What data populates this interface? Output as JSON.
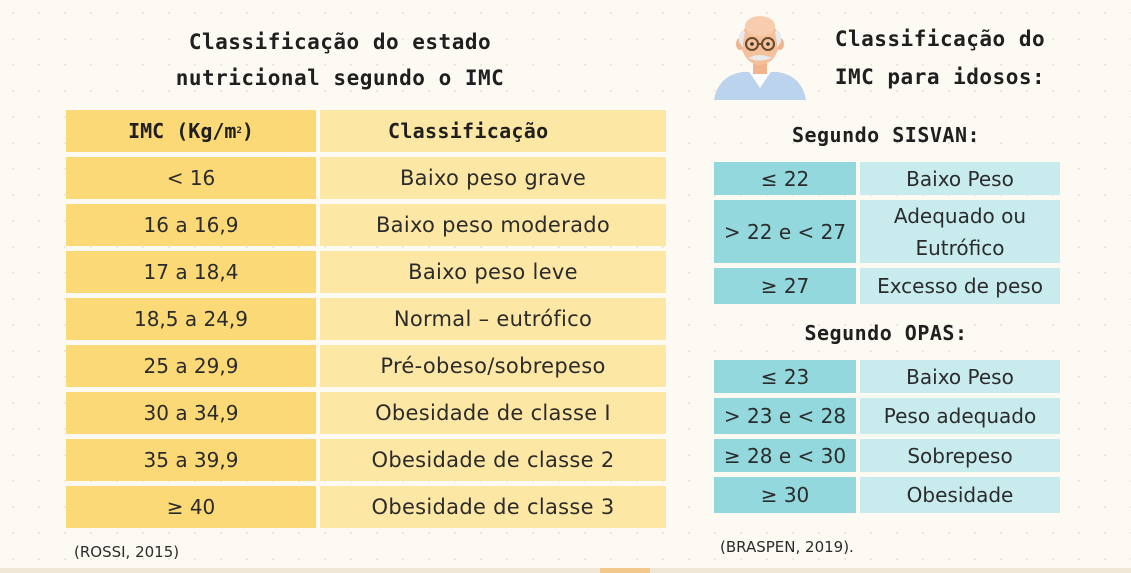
{
  "left": {
    "title_line1": "Classificação do estado",
    "title_line2": "nutricional segundo o IMC",
    "table": {
      "header_imc": "IMC (Kg/m",
      "header_imc_sup": "2",
      "header_imc_close": ")",
      "header_class": "Classificação",
      "rows": [
        {
          "imc": "< 16",
          "classificacao": "Baixo peso grave"
        },
        {
          "imc": "16 a 16,9",
          "classificacao": "Baixo peso moderado"
        },
        {
          "imc": "17 a 18,4",
          "classificacao": "Baixo peso leve"
        },
        {
          "imc": "18,5 a 24,9",
          "classificacao": "Normal – eutrófico"
        },
        {
          "imc": "25 a 29,9",
          "classificacao": "Pré-obeso/sobrepeso"
        },
        {
          "imc": "30 a 34,9",
          "classificacao": "Obesidade de classe I"
        },
        {
          "imc": "35 a 39,9",
          "classificacao": "Obesidade de classe 2"
        },
        {
          "imc": "≥ 40",
          "classificacao": "Obesidade de classe 3"
        }
      ]
    },
    "citation": "(ROSSI, 2015)"
  },
  "right": {
    "title_line1": "Classificação do",
    "title_line2": "IMC para idosos:",
    "sisvan": {
      "title": "Segundo SISVAN:",
      "rows": [
        {
          "imc": "≤ 22",
          "classificacao": "Baixo Peso"
        },
        {
          "imc": "> 22 e < 27",
          "classificacao_line1": "Adequado ou",
          "classificacao_line2": "Eutrófico"
        },
        {
          "imc": "≥ 27",
          "classificacao": "Excesso de peso"
        }
      ]
    },
    "opas": {
      "title": "Segundo OPAS:",
      "rows": [
        {
          "imc": "≤ 23",
          "classificacao": "Baixo Peso"
        },
        {
          "imc": "> 23 e < 28",
          "classificacao": "Peso adequado"
        },
        {
          "imc": "≥ 28 e < 30",
          "classificacao": "Sobrepeso"
        },
        {
          "imc": "≥ 30",
          "classificacao": "Obesidade"
        }
      ]
    },
    "citation": "(BRASPEN, 2019)."
  },
  "icons": {
    "avatar": "elderly-man-icon"
  },
  "colors": {
    "left_key": "#fbd977",
    "left_value": "#fde7a5",
    "right_key": "#93d8dc",
    "right_value": "#c8ecee"
  }
}
